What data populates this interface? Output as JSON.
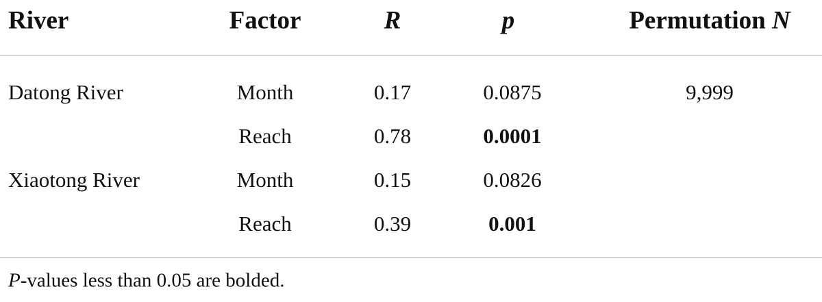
{
  "table": {
    "header": [
      "River",
      "Factor",
      "R",
      "p",
      [
        "Permutation",
        "N"
      ]
    ],
    "rows": [
      [
        "Datong River",
        "Month",
        "0.17",
        "0.0875",
        "9,999"
      ],
      [
        null,
        "Reach",
        "0.78",
        "0.0001",
        null
      ],
      [
        "Xiaotong River",
        "Month",
        "0.15",
        "0.0826",
        null
      ],
      [
        null,
        "Reach",
        "0.39",
        "0.001",
        null
      ]
    ],
    "bold_p": [
      false,
      true,
      false,
      true
    ]
  },
  "footnote": [
    "P",
    "-values less than 0.05 are bolded."
  ]
}
